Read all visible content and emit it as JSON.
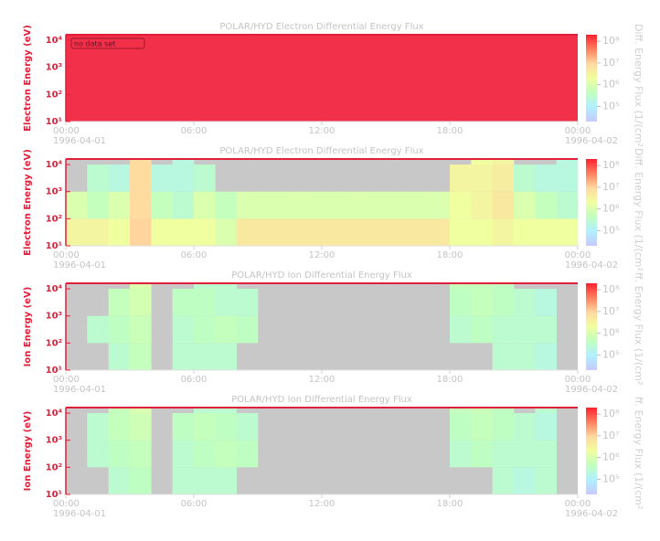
{
  "chart_data": [
    {
      "type": "nodata",
      "title": "POLAR/HYD  Electron Differential Energy Flux",
      "y_label": "Electron Energy (eV)",
      "colorbar_label": "Diff. Energy Flux (1/(cm²",
      "annotation": "no data set",
      "fill_color": "#f2304a",
      "xlim": [
        0,
        24
      ],
      "xticks": [
        {
          "value": 0,
          "label": "00:00"
        },
        {
          "value": 6,
          "label": "06:00"
        },
        {
          "value": 12,
          "label": "12:00"
        },
        {
          "value": 18,
          "label": "18:00"
        },
        {
          "value": 24,
          "label": "00:00"
        }
      ],
      "date_labels": [
        {
          "value": 0,
          "label": "1996-04-01"
        },
        {
          "value": 24,
          "label": "1996-04-02"
        }
      ],
      "ylim": [
        10,
        16000
      ],
      "ylog": true,
      "yticks": [
        {
          "value": 10,
          "label": "10¹"
        },
        {
          "value": 100,
          "label": "10²"
        },
        {
          "value": 1000,
          "label": "10³"
        },
        {
          "value": 10000,
          "label": "10⁴"
        }
      ],
      "clim": [
        20000,
        200000000
      ],
      "cticks": [
        {
          "value": 100000,
          "label": "10⁵"
        },
        {
          "value": 1000000,
          "label": "10⁶"
        },
        {
          "value": 10000000,
          "label": "10⁷"
        },
        {
          "value": 100000000,
          "label": "10⁸"
        }
      ],
      "colormap": [
        "#c8c8ff",
        "#b0f0ff",
        "#c0ffc0",
        "#f0ffa0",
        "#ffd8a0",
        "#ff8060",
        "#ff2030"
      ]
    },
    {
      "type": "heatmap",
      "title": "POLAR/HYD  Electron Differential Energy Flux",
      "y_label": "Electron Energy (eV)",
      "colorbar_label": "Diff. Energy Flux (1/(cm²",
      "fill_color": "#c8c8c8",
      "xlim": [
        0,
        24
      ],
      "xticks": [
        {
          "value": 0,
          "label": "00:00"
        },
        {
          "value": 6,
          "label": "06:00"
        },
        {
          "value": 12,
          "label": "12:00"
        },
        {
          "value": 18,
          "label": "18:00"
        },
        {
          "value": 24,
          "label": "00:00"
        }
      ],
      "date_labels": [
        {
          "value": 0,
          "label": "1996-04-01"
        },
        {
          "value": 24,
          "label": "1996-04-02"
        }
      ],
      "ylim": [
        10,
        16000
      ],
      "ylog": true,
      "yticks": [
        {
          "value": 10,
          "label": "10¹"
        },
        {
          "value": 100,
          "label": "10²"
        },
        {
          "value": 1000,
          "label": "10³"
        },
        {
          "value": 10000,
          "label": "10⁴"
        }
      ],
      "clim": [
        20000,
        200000000
      ],
      "cticks": [
        {
          "value": 100000,
          "label": "10⁵"
        },
        {
          "value": 1000000,
          "label": "10⁶"
        },
        {
          "value": 10000000,
          "label": "10⁷"
        },
        {
          "value": 100000000,
          "label": "10⁸"
        }
      ],
      "colormap": [
        "#c8c8ff",
        "#b0f0ff",
        "#c0ffc0",
        "#f0ffa0",
        "#ffd8a0",
        "#ff8060",
        "#ff2030"
      ],
      "x_bins": [
        0,
        1,
        2,
        3,
        4,
        5,
        6,
        7,
        8,
        9,
        10,
        11,
        12,
        13,
        14,
        15,
        16,
        17,
        18,
        19,
        20,
        21,
        22,
        23,
        24
      ],
      "y_bins": [
        10,
        100,
        1000,
        10000,
        16000
      ],
      "z": [
        [
          3000000.0,
          3000000.0,
          2000000.0,
          10000000.0,
          2000000.0,
          2000000.0,
          2000000.0,
          1000000.0,
          5000000.0,
          5000000.0,
          5000000.0,
          5000000.0,
          5000000.0,
          5000000.0,
          5000000.0,
          5000000.0,
          5000000.0,
          5000000.0,
          2000000.0,
          2000000.0,
          3000000.0,
          2000000.0,
          2000000.0,
          2000000.0
        ],
        [
          1000000.0,
          500000.0,
          1000000.0,
          8000000.0,
          500000.0,
          300000.0,
          1000000.0,
          500000.0,
          1000000.0,
          1000000.0,
          1000000.0,
          1000000.0,
          1000000.0,
          1000000.0,
          1000000.0,
          1000000.0,
          1000000.0,
          1000000.0,
          2000000.0,
          3000000.0,
          5000000.0,
          1000000.0,
          500000.0,
          300000.0
        ],
        [
          null,
          300000.0,
          200000.0,
          8000000.0,
          200000.0,
          200000.0,
          300000.0,
          null,
          null,
          null,
          null,
          null,
          null,
          null,
          null,
          null,
          null,
          null,
          3000000.0,
          3000000.0,
          4000000.0,
          300000.0,
          200000.0,
          200000.0
        ],
        [
          null,
          null,
          null,
          8000000.0,
          null,
          200000.0,
          null,
          null,
          null,
          null,
          null,
          null,
          null,
          null,
          null,
          null,
          null,
          null,
          null,
          2000000.0,
          3000000.0,
          null,
          null,
          200000.0
        ]
      ]
    },
    {
      "type": "heatmap",
      "title": "POLAR/HYD  Ion Differential Energy Flux",
      "y_label": "Ion Energy (eV)",
      "colorbar_label": "ff. Energy Flux (1/(cm²",
      "fill_color": "#c8c8c8",
      "xlim": [
        0,
        24
      ],
      "xticks": [
        {
          "value": 0,
          "label": "00:00"
        },
        {
          "value": 6,
          "label": "06:00"
        },
        {
          "value": 12,
          "label": "12:00"
        },
        {
          "value": 18,
          "label": "18:00"
        },
        {
          "value": 24,
          "label": "00:00"
        }
      ],
      "date_labels": [
        {
          "value": 0,
          "label": "1996-04-01"
        },
        {
          "value": 24,
          "label": "1996-04-02"
        }
      ],
      "ylim": [
        10,
        16000
      ],
      "ylog": true,
      "yticks": [
        {
          "value": 10,
          "label": "10¹"
        },
        {
          "value": 100,
          "label": "10²"
        },
        {
          "value": 1000,
          "label": "10³"
        },
        {
          "value": 10000,
          "label": "10⁴"
        }
      ],
      "clim": [
        20000,
        200000000
      ],
      "cticks": [
        {
          "value": 100000,
          "label": "10⁵"
        },
        {
          "value": 1000000,
          "label": "10⁶"
        },
        {
          "value": 10000000,
          "label": "10⁷"
        },
        {
          "value": 100000000,
          "label": "10⁸"
        }
      ],
      "colormap": [
        "#c8c8ff",
        "#b0f0ff",
        "#c0ffc0",
        "#f0ffa0",
        "#ffd8a0",
        "#ff8060",
        "#ff2030"
      ],
      "x_bins": [
        0,
        1,
        2,
        3,
        4,
        5,
        6,
        7,
        8,
        9,
        10,
        11,
        12,
        13,
        14,
        15,
        16,
        17,
        18,
        19,
        20,
        21,
        22,
        23,
        24
      ],
      "y_bins": [
        10,
        100,
        1000,
        10000,
        16000
      ],
      "z": [
        [
          null,
          null,
          300000.0,
          500000.0,
          null,
          300000.0,
          300000.0,
          300000.0,
          null,
          null,
          null,
          null,
          null,
          null,
          null,
          null,
          null,
          null,
          null,
          null,
          300000.0,
          300000.0,
          200000.0,
          null
        ],
        [
          null,
          300000.0,
          400000.0,
          600000.0,
          null,
          300000.0,
          400000.0,
          500000.0,
          400000.0,
          null,
          null,
          null,
          null,
          null,
          null,
          null,
          null,
          null,
          300000.0,
          400000.0,
          300000.0,
          300000.0,
          300000.0,
          null
        ],
        [
          null,
          null,
          500000.0,
          800000.0,
          null,
          400000.0,
          400000.0,
          300000.0,
          300000.0,
          null,
          null,
          null,
          null,
          null,
          null,
          null,
          null,
          null,
          400000.0,
          500000.0,
          400000.0,
          300000.0,
          200000.0,
          null
        ],
        [
          null,
          null,
          null,
          1000000.0,
          null,
          null,
          300000.0,
          300000.0,
          null,
          null,
          null,
          null,
          null,
          null,
          null,
          null,
          null,
          null,
          500000.0,
          500000.0,
          400000.0,
          null,
          null,
          null
        ]
      ]
    },
    {
      "type": "heatmap",
      "title": "POLAR/HYD  Ion Differential Energy Flux",
      "y_label": "Ion Energy (eV)",
      "colorbar_label": "ff. Energy Flux (1/(cm²",
      "fill_color": "#c8c8c8",
      "xlim": [
        0,
        24
      ],
      "xticks": [
        {
          "value": 0,
          "label": "00:00"
        },
        {
          "value": 6,
          "label": "06:00"
        },
        {
          "value": 12,
          "label": "12:00"
        },
        {
          "value": 18,
          "label": "18:00"
        },
        {
          "value": 24,
          "label": "00:00"
        }
      ],
      "date_labels": [
        {
          "value": 0,
          "label": "1996-04-01"
        },
        {
          "value": 24,
          "label": "1996-04-02"
        }
      ],
      "ylim": [
        10,
        16000
      ],
      "ylog": true,
      "yticks": [
        {
          "value": 10,
          "label": "10¹"
        },
        {
          "value": 100,
          "label": "10²"
        },
        {
          "value": 1000,
          "label": "10³"
        },
        {
          "value": 10000,
          "label": "10⁴"
        }
      ],
      "clim": [
        20000,
        200000000
      ],
      "cticks": [
        {
          "value": 100000,
          "label": "10⁵"
        },
        {
          "value": 1000000,
          "label": "10⁶"
        },
        {
          "value": 10000000,
          "label": "10⁷"
        },
        {
          "value": 100000000,
          "label": "10⁸"
        }
      ],
      "colormap": [
        "#c8c8ff",
        "#b0f0ff",
        "#c0ffc0",
        "#f0ffa0",
        "#ffd8a0",
        "#ff8060",
        "#ff2030"
      ],
      "x_bins": [
        0,
        1,
        2,
        3,
        4,
        5,
        6,
        7,
        8,
        9,
        10,
        11,
        12,
        13,
        14,
        15,
        16,
        17,
        18,
        19,
        20,
        21,
        22,
        23,
        24
      ],
      "y_bins": [
        10,
        100,
        1000,
        10000,
        16000
      ],
      "z": [
        [
          null,
          null,
          300000.0,
          400000.0,
          null,
          300000.0,
          300000.0,
          300000.0,
          null,
          null,
          null,
          null,
          null,
          null,
          null,
          null,
          null,
          null,
          null,
          null,
          300000.0,
          200000.0,
          300000.0,
          null
        ],
        [
          null,
          300000.0,
          400000.0,
          500000.0,
          null,
          300000.0,
          400000.0,
          500000.0,
          400000.0,
          null,
          null,
          null,
          null,
          null,
          null,
          null,
          null,
          null,
          300000.0,
          400000.0,
          300000.0,
          300000.0,
          300000.0,
          null
        ],
        [
          null,
          300000.0,
          500000.0,
          700000.0,
          null,
          400000.0,
          500000.0,
          400000.0,
          300000.0,
          null,
          null,
          null,
          null,
          null,
          null,
          null,
          null,
          null,
          400000.0,
          500000.0,
          400000.0,
          300000.0,
          200000.0,
          null
        ],
        [
          null,
          null,
          500000.0,
          1000000.0,
          null,
          null,
          300000.0,
          300000.0,
          null,
          null,
          null,
          null,
          null,
          null,
          null,
          null,
          null,
          null,
          500000.0,
          600000.0,
          400000.0,
          null,
          300000.0,
          null
        ]
      ]
    }
  ]
}
